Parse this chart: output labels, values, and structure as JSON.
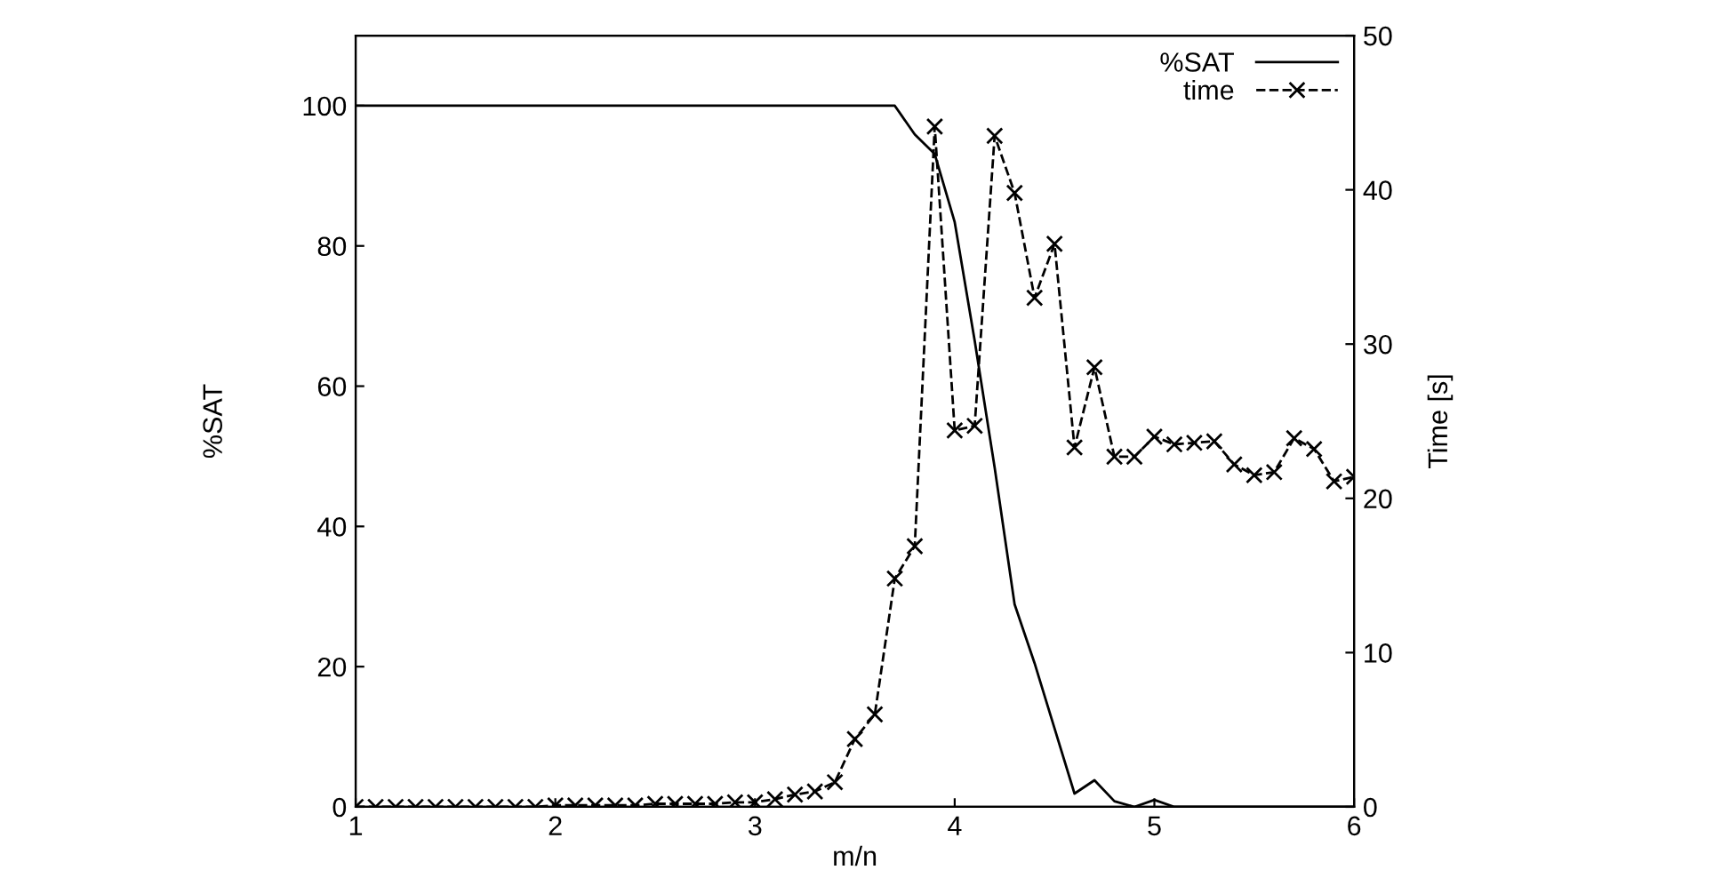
{
  "chart_data": {
    "type": "line",
    "xlabel": "m/n",
    "ylabel": "%SAT",
    "y2label": "Time [s]",
    "x": [
      1.0,
      1.1,
      1.2,
      1.3,
      1.4,
      1.5,
      1.6,
      1.7,
      1.8,
      1.9,
      2.0,
      2.1,
      2.2,
      2.3,
      2.4,
      2.5,
      2.6,
      2.7,
      2.8,
      2.9,
      3.0,
      3.1,
      3.2,
      3.3,
      3.4,
      3.5,
      3.6,
      3.7,
      3.8,
      3.9,
      4.0,
      4.1,
      4.2,
      4.3,
      4.4,
      4.5,
      4.6,
      4.7,
      4.8,
      4.9,
      5.0,
      5.1,
      5.2,
      5.3,
      5.4,
      5.5,
      5.6,
      5.7,
      5.8,
      5.9,
      6.0
    ],
    "xlim": [
      1,
      6
    ],
    "xticks": [
      1,
      2,
      3,
      4,
      5,
      6
    ],
    "ylim": [
      0,
      110
    ],
    "yticks": [
      0,
      20,
      40,
      60,
      80,
      100
    ],
    "y2lim": [
      0,
      50
    ],
    "y2ticks": [
      0,
      10,
      20,
      30,
      40,
      50
    ],
    "grid": false,
    "legend": "top right",
    "series": [
      {
        "name": "%SAT",
        "color": "#000000",
        "line_style": "solid",
        "marker": "none",
        "values": [
          100,
          100,
          100,
          100,
          100,
          100,
          100,
          100,
          100,
          100,
          100,
          100,
          100,
          100,
          100,
          100,
          100,
          100,
          100,
          100,
          100,
          100,
          100,
          100,
          100,
          100,
          100,
          100,
          95.9,
          93.1,
          83.4,
          66.5,
          48.4,
          28.9,
          20.5,
          11.2,
          1.9,
          3.8,
          0.8,
          0,
          1.0,
          0,
          0,
          0,
          0,
          0,
          0,
          0,
          0,
          0,
          0
        ]
      },
      {
        "name": "time",
        "color": "#000000",
        "line_style": "dashed",
        "marker": "cross",
        "axis": "y2",
        "values": [
          0,
          0,
          0,
          0,
          0,
          0,
          0,
          0,
          0,
          0,
          0.1,
          0.1,
          0.1,
          0.1,
          0.1,
          0.2,
          0.2,
          0.2,
          0.2,
          0.3,
          0.3,
          0.5,
          0.8,
          1.0,
          1.6,
          4.4,
          6.0,
          14.8,
          16.9,
          44.1,
          24.4,
          24.7,
          43.5,
          39.8,
          33.0,
          36.5,
          23.3,
          28.5,
          22.7,
          22.7,
          24.0,
          23.5,
          23.6,
          23.7,
          22.2,
          21.5,
          21.7,
          23.9,
          23.2,
          21.1,
          21.4
        ]
      }
    ]
  }
}
